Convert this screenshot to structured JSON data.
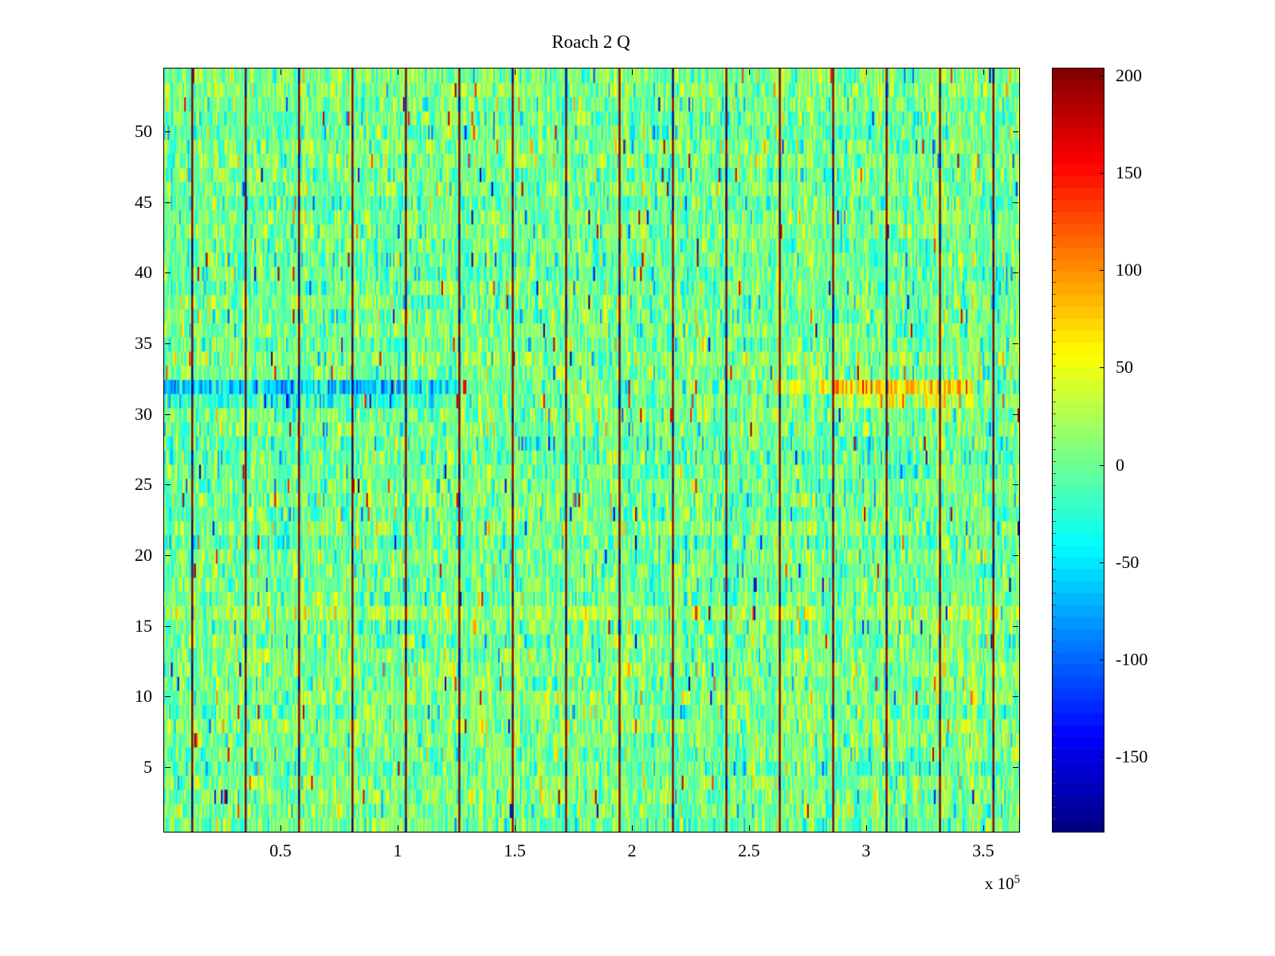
{
  "figure": {
    "background": "#ffffff",
    "frame_color": "#000000"
  },
  "chart_data": {
    "type": "heatmap",
    "title": "Roach 2 Q",
    "grid": false,
    "legend": null,
    "x_axis": {
      "label": "",
      "range": [
        0,
        365000
      ],
      "tick_values": [
        50000,
        100000,
        150000,
        200000,
        250000,
        300000,
        350000
      ],
      "tick_labels": [
        "0.5",
        "1",
        "1.5",
        "2",
        "2.5",
        "3",
        "3.5"
      ],
      "exponent_prefix": "x 10",
      "exponent": "5"
    },
    "y_axis": {
      "label": "",
      "range": [
        0.5,
        54.5
      ],
      "tick_values": [
        5,
        10,
        15,
        20,
        25,
        30,
        35,
        40,
        45,
        50
      ],
      "tick_labels": [
        "5",
        "10",
        "15",
        "20",
        "25",
        "30",
        "35",
        "40",
        "45",
        "50"
      ]
    },
    "colorbar": {
      "colormap": "jet",
      "clim": [
        -188,
        204
      ],
      "segments": 64,
      "tick_values": [
        200,
        150,
        100,
        50,
        0,
        -50,
        -100,
        -150
      ],
      "tick_labels": [
        "200",
        "150",
        "100",
        "50",
        "0",
        "-50",
        "-100",
        "-150"
      ],
      "segment_tick_color": "rgba(150,25,15,0.85)"
    },
    "grid_size": {
      "rows": 54,
      "cols": 512
    },
    "noise": {
      "description": "speckled noise field, mostly greens/cyans/yellows around 0",
      "mean": 3,
      "std": 28,
      "seed": 20471,
      "col_variation": 7,
      "row_variation": 4,
      "outlier_high_prob": 0.005,
      "outlier_low_prob": 0.006
    },
    "vertical_lines": {
      "description": "dark saturated frame-boundary lines, mostly dark red with blue segments",
      "count": 16,
      "start_x": 12000,
      "spacing_x": 22800,
      "high_value": 200,
      "low_value": -185,
      "high_fraction": 0.78
    },
    "bands": [
      {
        "label": "cyan-band-left",
        "rows": [
          32
        ],
        "x_range": [
          0,
          125000
        ],
        "delta": -55
      },
      {
        "label": "cyan-band-left-faint",
        "rows": [
          31
        ],
        "x_range": [
          0,
          125000
        ],
        "delta": -28
      },
      {
        "label": "warm-band-right",
        "rows": [
          32
        ],
        "x_range": [
          285000,
          345000
        ],
        "delta": 80
      },
      {
        "label": "warm-band-right-faint",
        "rows": [
          31
        ],
        "x_range": [
          285000,
          345000
        ],
        "delta": 38
      },
      {
        "label": "warm-band-right-lead",
        "rows": [
          32
        ],
        "x_range": [
          255000,
          285000
        ],
        "delta": 30
      },
      {
        "label": "yellow-band-mid",
        "rows": [
          16
        ],
        "x_range": [
          0,
          365000
        ],
        "delta": 18
      }
    ]
  }
}
